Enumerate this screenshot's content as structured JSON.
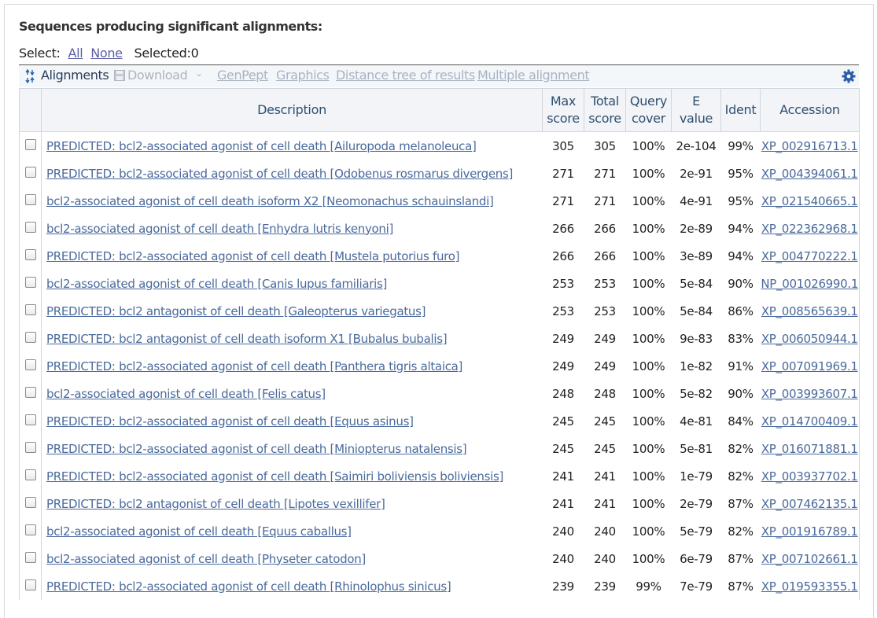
{
  "title": "Sequences producing significant alignments:",
  "select": {
    "label": "Select:",
    "all": "All",
    "none": "None",
    "selected": "Selected:0"
  },
  "toolbar": {
    "alignments": "Alignments",
    "download": "Download",
    "genpept": "GenPept",
    "graphics": "Graphics",
    "distance_tree": "Distance tree of results",
    "multiple_alignment": "Multiple alignment",
    "icons": {
      "alignments": "expand-collapse-icon",
      "download": "floppy-disk-icon",
      "settings": "gear-icon"
    },
    "colors": {
      "toolbar_bg": "#f4f7fa",
      "disabled": "#a9b2c3",
      "gear": "#2a5ea8"
    }
  },
  "columns": {
    "description": "Description",
    "max_score_1": "Max",
    "max_score_2": "score",
    "total_score_1": "Total",
    "total_score_2": "score",
    "query_cover_1": "Query",
    "query_cover_2": "cover",
    "evalue_1": "E",
    "evalue_2": "value",
    "ident": "Ident",
    "accession": "Accession"
  },
  "rows": [
    {
      "desc": "PREDICTED: bcl2-associated agonist of cell death [Ailuropoda melanoleuca]",
      "max": "305",
      "total": "305",
      "cover": "100%",
      "evalue": "2e-104",
      "ident": "99%",
      "acc": "XP_002916713.1"
    },
    {
      "desc": "PREDICTED: bcl2-associated agonist of cell death [Odobenus rosmarus divergens]",
      "max": "271",
      "total": "271",
      "cover": "100%",
      "evalue": "2e-91",
      "ident": "95%",
      "acc": "XP_004394061.1"
    },
    {
      "desc": "bcl2-associated agonist of cell death isoform X2 [Neomonachus schauinslandi]",
      "max": "271",
      "total": "271",
      "cover": "100%",
      "evalue": "4e-91",
      "ident": "95%",
      "acc": "XP_021540665.1"
    },
    {
      "desc": "bcl2-associated agonist of cell death [Enhydra lutris kenyoni]",
      "max": "266",
      "total": "266",
      "cover": "100%",
      "evalue": "2e-89",
      "ident": "94%",
      "acc": "XP_022362968.1"
    },
    {
      "desc": "PREDICTED: bcl2-associated agonist of cell death [Mustela putorius furo]",
      "max": "266",
      "total": "266",
      "cover": "100%",
      "evalue": "3e-89",
      "ident": "94%",
      "acc": "XP_004770222.1"
    },
    {
      "desc": "bcl2-associated agonist of cell death [Canis lupus familiaris]",
      "max": "253",
      "total": "253",
      "cover": "100%",
      "evalue": "5e-84",
      "ident": "90%",
      "acc": "NP_001026990.1"
    },
    {
      "desc": "PREDICTED: bcl2 antagonist of cell death [Galeopterus variegatus]",
      "max": "253",
      "total": "253",
      "cover": "100%",
      "evalue": "5e-84",
      "ident": "86%",
      "acc": "XP_008565639.1"
    },
    {
      "desc": "PREDICTED: bcl2 antagonist of cell death isoform X1 [Bubalus bubalis]",
      "max": "249",
      "total": "249",
      "cover": "100%",
      "evalue": "9e-83",
      "ident": "83%",
      "acc": "XP_006050944.1"
    },
    {
      "desc": "PREDICTED: bcl2-associated agonist of cell death [Panthera tigris altaica]",
      "max": "249",
      "total": "249",
      "cover": "100%",
      "evalue": "1e-82",
      "ident": "91%",
      "acc": "XP_007091969.1"
    },
    {
      "desc": "bcl2-associated agonist of cell death [Felis catus]",
      "max": "248",
      "total": "248",
      "cover": "100%",
      "evalue": "5e-82",
      "ident": "90%",
      "acc": "XP_003993607.1"
    },
    {
      "desc": "PREDICTED: bcl2-associated agonist of cell death [Equus asinus]",
      "max": "245",
      "total": "245",
      "cover": "100%",
      "evalue": "4e-81",
      "ident": "84%",
      "acc": "XP_014700409.1"
    },
    {
      "desc": "PREDICTED: bcl2-associated agonist of cell death [Miniopterus natalensis]",
      "max": "245",
      "total": "245",
      "cover": "100%",
      "evalue": "5e-81",
      "ident": "82%",
      "acc": "XP_016071881.1"
    },
    {
      "desc": "PREDICTED: bcl2-associated agonist of cell death [Saimiri boliviensis boliviensis]",
      "max": "241",
      "total": "241",
      "cover": "100%",
      "evalue": "1e-79",
      "ident": "82%",
      "acc": "XP_003937702.1"
    },
    {
      "desc": "PREDICTED: bcl2 antagonist of cell death [Lipotes vexillifer]",
      "max": "241",
      "total": "241",
      "cover": "100%",
      "evalue": "2e-79",
      "ident": "87%",
      "acc": "XP_007462135.1"
    },
    {
      "desc": "bcl2-associated agonist of cell death [Equus caballus]",
      "max": "240",
      "total": "240",
      "cover": "100%",
      "evalue": "5e-79",
      "ident": "82%",
      "acc": "XP_001916789.1"
    },
    {
      "desc": "bcl2-associated agonist of cell death [Physeter catodon]",
      "max": "240",
      "total": "240",
      "cover": "100%",
      "evalue": "6e-79",
      "ident": "87%",
      "acc": "XP_007102661.1"
    },
    {
      "desc": "PREDICTED: bcl2-associated agonist of cell death [Rhinolophus sinicus]",
      "max": "239",
      "total": "239",
      "cover": "99%",
      "evalue": "7e-79",
      "ident": "87%",
      "acc": "XP_019593355.1"
    }
  ]
}
